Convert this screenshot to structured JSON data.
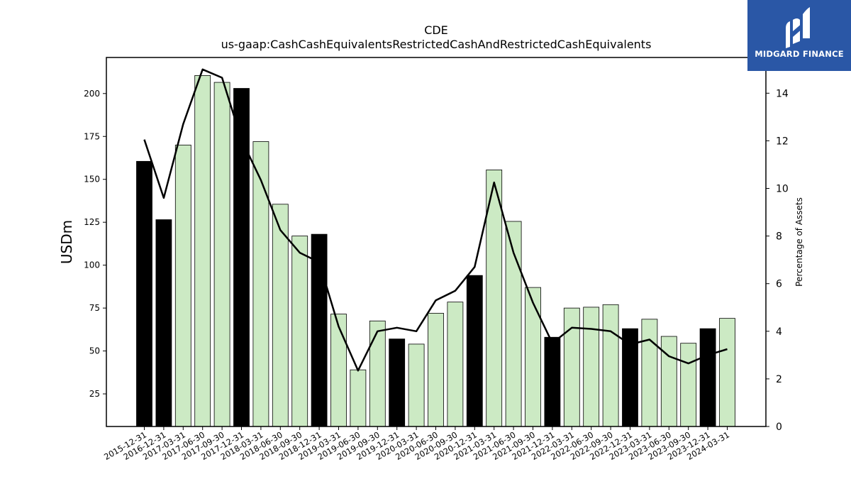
{
  "chart_data": {
    "type": "bar",
    "title": "CDE",
    "subtitle": "us-gaap:CashCashEquivalentsRestrictedCashAndRestrictedCashEquivalents",
    "ylabel": "USDm",
    "y2label": "Percentage of Assets",
    "ylim": [
      6,
      221
    ],
    "y2lim": [
      0,
      15.5
    ],
    "yticks": [
      25,
      50,
      75,
      100,
      125,
      150,
      175,
      200
    ],
    "y2ticks": [
      0,
      2,
      4,
      6,
      8,
      10,
      12,
      14
    ],
    "categories": [
      "2015-12-31",
      "2016-12-31",
      "2017-03-31",
      "2017-06-30",
      "2017-09-30",
      "2017-12-31",
      "2018-03-31",
      "2018-06-30",
      "2018-09-30",
      "2018-12-31",
      "2019-03-31",
      "2019-06-30",
      "2019-09-30",
      "2019-12-31",
      "2020-03-31",
      "2020-06-30",
      "2020-09-30",
      "2020-12-31",
      "2021-03-31",
      "2021-06-30",
      "2021-09-30",
      "2021-12-31",
      "2022-03-31",
      "2022-06-30",
      "2022-09-30",
      "2022-12-31",
      "2023-03-31",
      "2023-06-30",
      "2023-09-30",
      "2023-12-31",
      "2024-03-31"
    ],
    "series": [
      {
        "values": [
          160.5,
          126.5,
          170.0,
          210.5,
          206.5,
          203.0,
          172.0,
          135.5,
          117.0,
          118.0,
          71.5,
          39.0,
          67.5,
          57.0,
          54.0,
          72.0,
          78.5,
          94.0,
          155.5,
          125.5,
          87.0,
          58.0,
          75.0,
          75.5,
          77.0,
          63.0,
          68.5,
          58.5,
          54.5,
          63.0,
          69.0
        ],
        "annual": [
          true,
          true,
          false,
          false,
          false,
          true,
          false,
          false,
          false,
          true,
          false,
          false,
          false,
          true,
          false,
          false,
          false,
          true,
          false,
          false,
          false,
          true,
          false,
          false,
          false,
          true,
          false,
          false,
          false,
          true,
          false
        ]
      },
      {
        "axis": "right",
        "type": "line",
        "values": [
          12.05,
          9.6,
          12.7,
          15.0,
          14.65,
          12.05,
          10.35,
          8.25,
          7.3,
          6.9,
          4.2,
          2.35,
          4.0,
          4.15,
          4.0,
          5.3,
          5.7,
          6.7,
          10.25,
          7.3,
          5.2,
          3.5,
          4.15,
          4.1,
          4.0,
          3.45,
          3.65,
          2.95,
          2.65,
          3.0,
          3.25
        ]
      }
    ],
    "colors": {
      "annual_bar": "#000000",
      "quarter_bar": "#cceac4",
      "line": "#000000"
    }
  },
  "logo": {
    "text": "MIDGARD FINANCE",
    "color": "#2a57a6"
  }
}
